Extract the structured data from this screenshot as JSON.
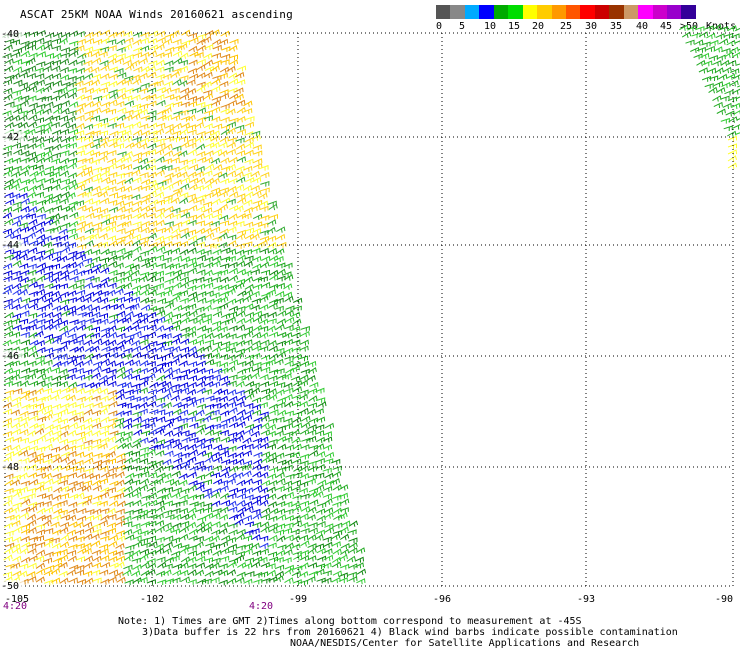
{
  "title": "ASCAT 25KM NOAA Winds 20160621 ascending",
  "colorbar": {
    "colors": [
      "#555555",
      "#888888",
      "#00aaff",
      "#0000ff",
      "#00aa00",
      "#00dd00",
      "#ffff00",
      "#ffcc00",
      "#ff9900",
      "#ff5500",
      "#ff0000",
      "#cc0000",
      "#993300",
      "#cc9966",
      "#ff00ff",
      "#cc00cc",
      "#9900cc",
      "#330099"
    ],
    "labels": [
      "0",
      "5",
      "10",
      "15",
      "20",
      "25",
      "30",
      "35",
      "40",
      "45",
      ">50"
    ],
    "unit": "Knots"
  },
  "map": {
    "lat_labels": [
      "-40",
      "-42",
      "-44",
      "-46",
      "-48",
      "-50"
    ],
    "lon_labels": [
      "-105",
      "-102",
      "-99",
      "-96",
      "-93",
      "-90"
    ],
    "time_labels": [
      "4:20",
      "4:20"
    ]
  },
  "notes": {
    "line1": "Note: 1) Times are GMT 2)Times along bottom correspond to measurement at -45S",
    "line2": "3)Data buffer is 22 hrs from 20160621 4) Black wind barbs indicate possible contamination",
    "credit": "NOAA/NESDIS/Center for Satellite Applications and Research"
  }
}
